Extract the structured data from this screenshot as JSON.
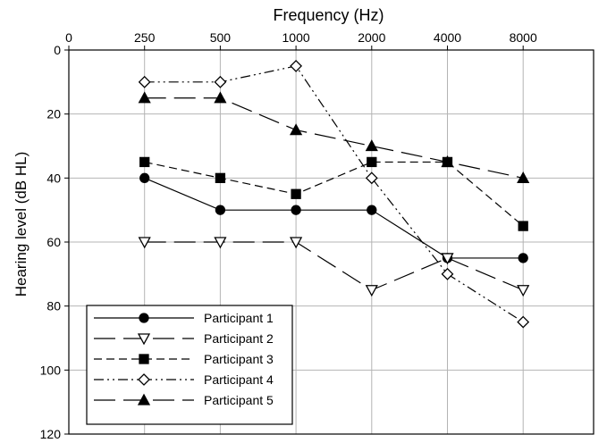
{
  "chart_data": {
    "type": "line",
    "xlabel": "Frequency (Hz)",
    "ylabel": "Hearing level (dB HL)",
    "x_axis_position": "top",
    "y_inverted": true,
    "categories": [
      "0",
      "250",
      "500",
      "1000",
      "2000",
      "4000",
      "8000"
    ],
    "ylim": [
      0,
      120
    ],
    "yticks": [
      0,
      20,
      40,
      60,
      80,
      100,
      120
    ],
    "grid": true,
    "legend_position": "bottom-left",
    "series": [
      {
        "name": "Participant 1",
        "marker": "circle-filled",
        "dash": "solid",
        "x": [
          "250",
          "500",
          "1000",
          "2000",
          "4000",
          "8000"
        ],
        "values": [
          40,
          50,
          50,
          50,
          65,
          65
        ]
      },
      {
        "name": "Participant 2",
        "marker": "triangle-down-open",
        "dash": "long-dash",
        "x": [
          "250",
          "500",
          "1000",
          "2000",
          "4000",
          "8000"
        ],
        "values": [
          60,
          60,
          60,
          75,
          65,
          75
        ]
      },
      {
        "name": "Participant 3",
        "marker": "square-filled",
        "dash": "dash",
        "x": [
          "250",
          "500",
          "1000",
          "2000",
          "4000",
          "8000"
        ],
        "values": [
          35,
          40,
          45,
          35,
          35,
          55
        ]
      },
      {
        "name": "Participant 4",
        "marker": "diamond-open",
        "dash": "dash-dot-dot",
        "x": [
          "250",
          "500",
          "1000",
          "2000",
          "4000",
          "8000"
        ],
        "values": [
          10,
          10,
          5,
          40,
          70,
          85
        ]
      },
      {
        "name": "Participant 5",
        "marker": "triangle-up-filled",
        "dash": "long-dash",
        "x": [
          "250",
          "500",
          "1000",
          "2000",
          "4000",
          "8000"
        ],
        "values": [
          15,
          15,
          25,
          30,
          35,
          40
        ]
      }
    ]
  }
}
